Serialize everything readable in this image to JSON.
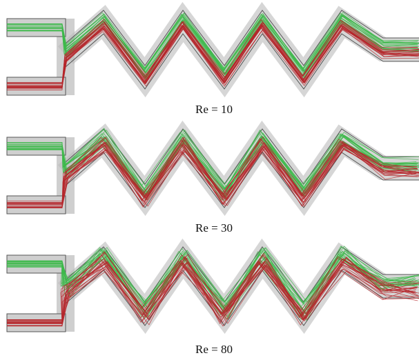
{
  "panels": [
    {
      "caption": "Re = 10"
    },
    {
      "caption": "Re = 30"
    },
    {
      "caption": "Re = 80"
    }
  ]
}
